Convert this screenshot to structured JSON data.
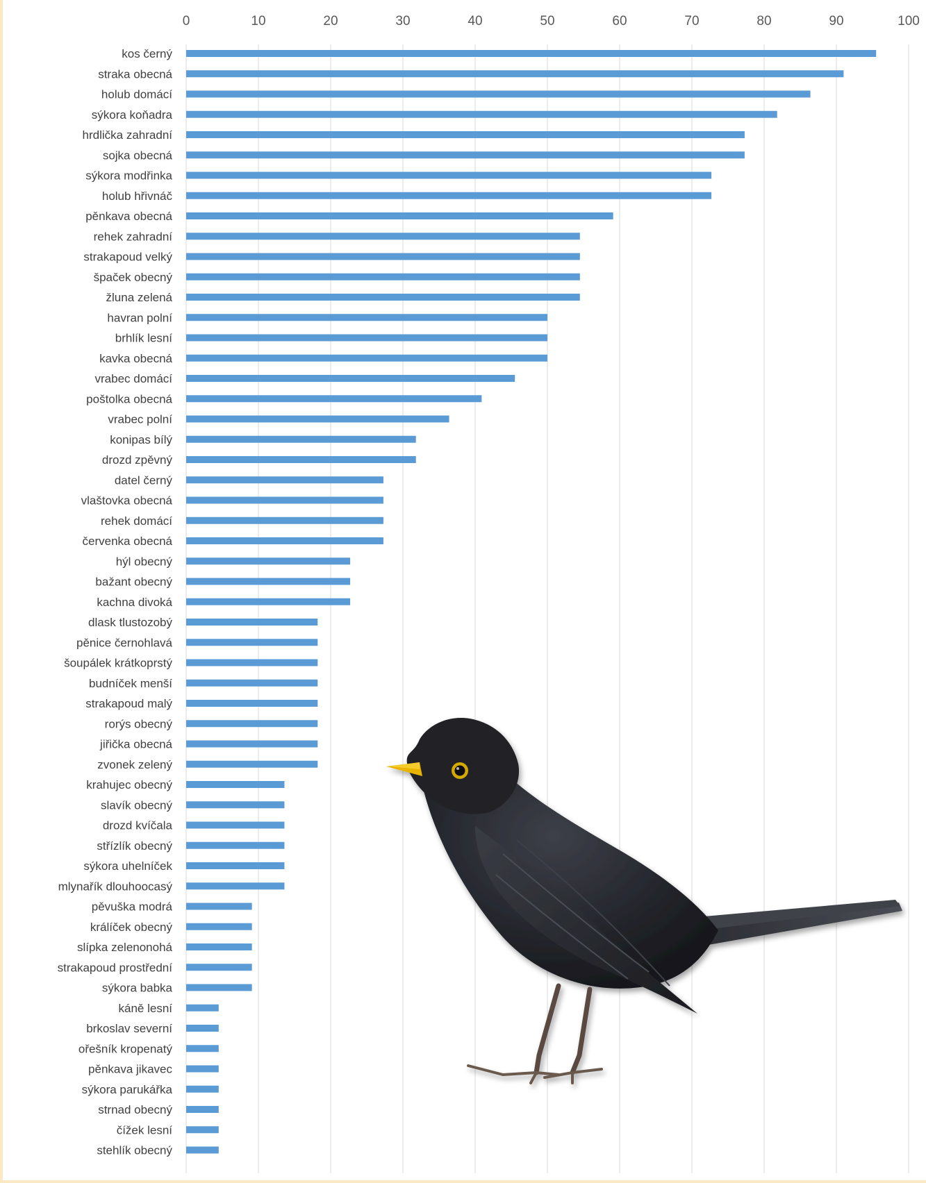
{
  "chart_data": {
    "type": "bar",
    "orientation": "horizontal",
    "title": "",
    "xlabel": "",
    "ylabel": "",
    "xlim": [
      0,
      100
    ],
    "x_ticks": [
      0,
      10,
      20,
      30,
      40,
      50,
      60,
      70,
      80,
      90,
      100
    ],
    "x_axis_position": "top",
    "grid": true,
    "legend": "none",
    "bar_color": "#5b9bd5",
    "illustration": "blackbird-illustration",
    "categories": [
      "kos černý",
      "straka obecná",
      "holub domácí",
      "sýkora koňadra",
      "hrdlička zahradní",
      "sojka obecná",
      "sýkora modřinka",
      "holub hřivnáč",
      "pěnkava obecná",
      "rehek zahradní",
      "strakapoud velký",
      "špaček obecný",
      "žluna zelená",
      "havran polní",
      "brhlík lesní",
      "kavka obecná",
      "vrabec domácí",
      "poštolka obecná",
      "vrabec polní",
      "konipas bílý",
      "drozd zpěvný",
      "datel černý",
      "vlaštovka obecná",
      "rehek domácí",
      "červenka obecná",
      "hýl obecný",
      "bažant obecný",
      "kachna divoká",
      "dlask tlustozobý",
      "pěnice černohlavá",
      "šoupálek krátkoprstý",
      "budníček menší",
      "strakapoud malý",
      "rorýs obecný",
      "jiřička obecná",
      "zvonek zelený",
      "krahujec obecný",
      "slavík obecný",
      "drozd kvíčala",
      "střízlík obecný",
      "sýkora uhelníček",
      "mlynařík dlouhoocasý",
      "pěvuška modrá",
      "králíček obecný",
      "slípka zelenonohá",
      "strakapoud prostřední",
      "sýkora babka",
      "káně lesní",
      "brkoslav severní",
      "ořešník kropenatý",
      "pěnkava jikavec",
      "sýkora parukářka",
      "strnad obecný",
      "čížek lesní",
      "stehlík obecný"
    ],
    "values": [
      95.5,
      91,
      86.4,
      81.8,
      77.3,
      77.3,
      72.7,
      72.7,
      59.1,
      54.5,
      54.5,
      54.5,
      54.5,
      50,
      50,
      50,
      45.5,
      40.9,
      36.4,
      31.8,
      31.8,
      27.3,
      27.3,
      27.3,
      27.3,
      22.7,
      22.7,
      22.7,
      18.2,
      18.2,
      18.2,
      18.2,
      18.2,
      18.2,
      18.2,
      18.2,
      13.6,
      13.6,
      13.6,
      13.6,
      13.6,
      13.6,
      9.1,
      9.1,
      9.1,
      9.1,
      9.1,
      4.5,
      4.5,
      4.5,
      4.5,
      4.5,
      4.5,
      4.5,
      4.5
    ]
  }
}
